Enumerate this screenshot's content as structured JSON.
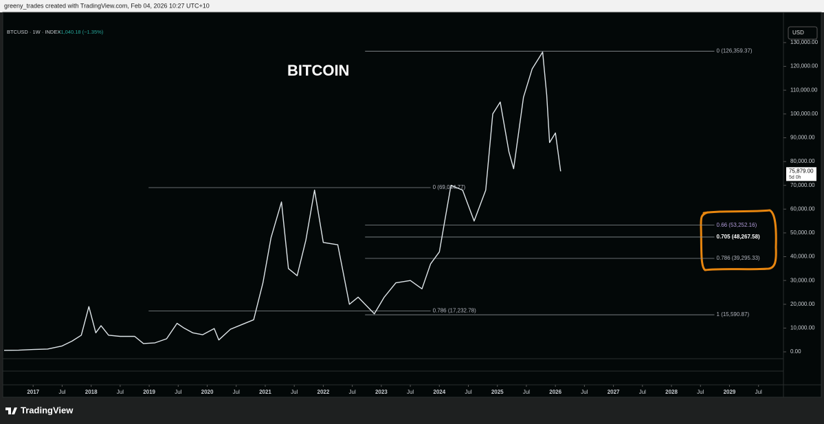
{
  "header": {
    "credit": "greeny_trades created with TradingView.com, Feb 04, 2026 10:27 UTC+10",
    "symbol": "BTCUSD · 1W · INDEX",
    "change": "−1,040.18 (−1.35%)",
    "currency": "USD"
  },
  "chart_data": {
    "type": "line",
    "title": "BITCOIN",
    "x": [
      2016.5,
      2016.75,
      2017.0,
      2017.25,
      2017.5,
      2017.67,
      2017.83,
      2017.96,
      2018.08,
      2018.17,
      2018.3,
      2018.5,
      2018.75,
      2018.9,
      2019.1,
      2019.3,
      2019.48,
      2019.6,
      2019.75,
      2019.92,
      2020.12,
      2020.2,
      2020.4,
      2020.6,
      2020.8,
      2020.96,
      2021.1,
      2021.28,
      2021.4,
      2021.55,
      2021.7,
      2021.85,
      2022.0,
      2022.25,
      2022.45,
      2022.6,
      2022.88,
      2023.05,
      2023.25,
      2023.5,
      2023.7,
      2023.85,
      2024.0,
      2024.2,
      2024.4,
      2024.6,
      2024.8,
      2024.92,
      2025.05,
      2025.2,
      2025.28,
      2025.45,
      2025.6,
      2025.78,
      2025.85,
      2025.9,
      2026.0,
      2026.09
    ],
    "series": [
      {
        "color": "#dfe6ea",
        "values": [
          650,
          700,
          1000,
          1200,
          2500,
          4500,
          7000,
          19000,
          8000,
          11000,
          7000,
          6500,
          6500,
          3500,
          3800,
          5500,
          12000,
          10000,
          8000,
          7200,
          9800,
          5000,
          9500,
          11500,
          13500,
          29000,
          48000,
          63000,
          35000,
          32000,
          47000,
          68000,
          46000,
          45000,
          20000,
          23000,
          16000,
          23000,
          29000,
          30000,
          26500,
          37000,
          42000,
          70000,
          68000,
          55000,
          68000,
          100000,
          105000,
          84000,
          77000,
          107000,
          119000,
          126000,
          108000,
          88000,
          92000,
          75879
        ]
      }
    ],
    "xlim": [
      2016.5,
      2029.93
    ],
    "xticks": [
      {
        "value": 2017,
        "label": "2017"
      },
      {
        "value": 2017.5,
        "label": "Jul"
      },
      {
        "value": 2018,
        "label": "2018"
      },
      {
        "value": 2018.5,
        "label": "Jul"
      },
      {
        "value": 2019,
        "label": "2019"
      },
      {
        "value": 2019.5,
        "label": "Jul"
      },
      {
        "value": 2020,
        "label": "2020"
      },
      {
        "value": 2020.5,
        "label": "Jul"
      },
      {
        "value": 2021,
        "label": "2021"
      },
      {
        "value": 2021.5,
        "label": "Jul"
      },
      {
        "value": 2022,
        "label": "2022"
      },
      {
        "value": 2022.5,
        "label": "Jul"
      },
      {
        "value": 2023,
        "label": "2023"
      },
      {
        "value": 2023.5,
        "label": "Jul"
      },
      {
        "value": 2024,
        "label": "2024"
      },
      {
        "value": 2024.5,
        "label": "Jul"
      },
      {
        "value": 2025,
        "label": "2025"
      },
      {
        "value": 2025.5,
        "label": "Jul"
      },
      {
        "value": 2026,
        "label": "2026"
      },
      {
        "value": 2026.5,
        "label": "Jul"
      },
      {
        "value": 2027,
        "label": "2027"
      },
      {
        "value": 2027.5,
        "label": "Jul"
      },
      {
        "value": 2028,
        "label": "2028"
      },
      {
        "value": 2028.5,
        "label": "Jul"
      },
      {
        "value": 2029,
        "label": "2029"
      },
      {
        "value": 2029.5,
        "label": "Jul"
      }
    ],
    "ylim": [
      -3000,
      136000
    ],
    "yticks": [
      {
        "value": 0,
        "label": "0.00"
      },
      {
        "value": 10000,
        "label": "10,000.00"
      },
      {
        "value": 20000,
        "label": "20,000.00"
      },
      {
        "value": 30000,
        "label": "30,000.00"
      },
      {
        "value": 40000,
        "label": "40,000.00"
      },
      {
        "value": 50000,
        "label": "50,000.00"
      },
      {
        "value": 60000,
        "label": "60,000.00"
      },
      {
        "value": 70000,
        "label": "70,000.00"
      },
      {
        "value": 80000,
        "label": "80,000.00"
      },
      {
        "value": 90000,
        "label": "90,000.00"
      },
      {
        "value": 100000,
        "label": "100,000.00"
      },
      {
        "value": 110000,
        "label": "110,000.00"
      },
      {
        "value": 120000,
        "label": "120,000.00"
      },
      {
        "value": 130000,
        "label": "130,000.00"
      }
    ],
    "fib_levels": [
      {
        "label": "0 (126,359.37)",
        "value": 126359.37,
        "x": [
          2022.72,
          2028.74
        ],
        "color": "#b2b5be"
      },
      {
        "label": "0 (69,044.77)",
        "value": 69044.77,
        "x": [
          2018.99,
          2023.85
        ],
        "color": "#b2b5be"
      },
      {
        "label": "0.66 (53,252.16)",
        "value": 53252.16,
        "x": [
          2022.72,
          2028.74
        ],
        "color": "#b39ddb"
      },
      {
        "label": "0.705 (48,267.58)",
        "value": 48267.58,
        "x": [
          2022.72,
          2028.74
        ],
        "color": "#ffffff"
      },
      {
        "label": "0.786 (39,295.33)",
        "value": 39295.33,
        "x": [
          2022.72,
          2028.74
        ],
        "color": "#b2b5be"
      },
      {
        "label": "0.786 (17,232.78)",
        "value": 17232.78,
        "x": [
          2018.99,
          2023.85
        ],
        "color": "#b2b5be"
      },
      {
        "label": "1 (15,590.87)",
        "value": 15590.87,
        "x": [
          2022.72,
          2028.74
        ],
        "color": "#b2b5be"
      }
    ],
    "last_price": {
      "value": 75879,
      "label": "75,879.00",
      "countdown": "5d 0h"
    }
  },
  "footer": {
    "brand": "TradingView"
  }
}
